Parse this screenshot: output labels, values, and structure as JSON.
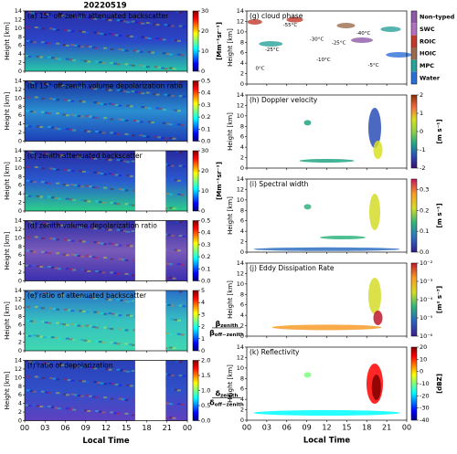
{
  "figure_title": "20220519",
  "chart_data": [
    {
      "type": "heatmap",
      "title": "(a) 15° off-zenith attenuated backscatter",
      "title_color": "#ffffff",
      "ylabel": "Height [km]",
      "xlim": [
        0,
        24
      ],
      "xticks": [
        {
          "value": 0,
          "label": "00"
        },
        {
          "value": 3,
          "label": "03"
        },
        {
          "value": 6,
          "label": "06"
        },
        {
          "value": 9,
          "label": "09"
        },
        12,
        15,
        18,
        21,
        {
          "value": 24,
          "label": "00"
        }
      ],
      "ylim": [
        0,
        14
      ],
      "yticks": [
        0,
        2,
        4,
        6,
        8,
        10,
        12,
        14
      ],
      "clim": [
        0,
        30
      ],
      "cticks": [
        0,
        10,
        20,
        30
      ],
      "cbar_label": "[Mm⁻¹sr⁻¹]",
      "colormap": [
        "#00007f",
        "#0000ff",
        "#007fff",
        "#00ffff",
        "#7fff7f",
        "#ffff00",
        "#ff7f00",
        "#ff0000",
        "#7f0000"
      ],
      "fill": [
        "#27c7a8",
        "#2b46c8",
        "#2a2ea8"
      ]
    },
    {
      "type": "heatmap",
      "title": "(b) 15° off-zenith volume depolarization ratio",
      "title_color": "#ffffff",
      "ylabel": "Height [km]",
      "xlim": [
        0,
        24
      ],
      "xticks": [
        {
          "value": 0,
          "label": "00"
        },
        {
          "value": 3,
          "label": "03"
        },
        {
          "value": 6,
          "label": "06"
        },
        {
          "value": 9,
          "label": "09"
        },
        12,
        15,
        18,
        21,
        {
          "value": 24,
          "label": "00"
        }
      ],
      "ylim": [
        0,
        14
      ],
      "yticks": [
        0,
        2,
        4,
        6,
        8,
        10,
        12,
        14
      ],
      "clim": [
        0,
        0.5
      ],
      "cticks": [
        {
          "value": 0,
          "label": "0.0"
        },
        0.1,
        0.2,
        0.3,
        0.4,
        0.5
      ],
      "colormap": [
        "#00007f",
        "#0000ff",
        "#007fff",
        "#00ffff",
        "#7fff7f",
        "#ffff00",
        "#ff7f00",
        "#ff0000",
        "#7f0000"
      ],
      "fill": [
        "#1e3fb8",
        "#2a8fd0",
        "#1a2fa0"
      ]
    },
    {
      "type": "heatmap",
      "title": "(c) zenith attenuated backscatter",
      "title_color": "#ffffff",
      "ylabel": "Height [km]",
      "xlim": [
        0,
        24
      ],
      "xticks": [
        {
          "value": 0,
          "label": "00"
        },
        {
          "value": 3,
          "label": "03"
        },
        {
          "value": 6,
          "label": "06"
        },
        {
          "value": 9,
          "label": "09"
        },
        12,
        15,
        18,
        21,
        {
          "value": 24,
          "label": "00"
        }
      ],
      "ylim": [
        0,
        14
      ],
      "yticks": [
        0,
        2,
        4,
        6,
        8,
        10,
        12,
        14
      ],
      "clim": [
        0,
        30
      ],
      "cticks": [
        0,
        10,
        20,
        30
      ],
      "cbar_label": "[Mm⁻¹sr⁻¹]",
      "colormap": [
        "#00007f",
        "#0000ff",
        "#007fff",
        "#00ffff",
        "#7fff7f",
        "#ffff00",
        "#ff7f00",
        "#ff0000",
        "#7f0000"
      ],
      "fill": [
        "#2bd08a",
        "#2a5ad0",
        "#2a2aa0"
      ],
      "missing_x": [
        16.3,
        20.8
      ]
    },
    {
      "type": "heatmap",
      "title": "(d) zenith volume depolarization ratio",
      "title_color": "#ffffff",
      "ylabel": "Height [km]",
      "xlim": [
        0,
        24
      ],
      "xticks": [
        {
          "value": 0,
          "label": "00"
        },
        {
          "value": 3,
          "label": "03"
        },
        {
          "value": 6,
          "label": "06"
        },
        {
          "value": 9,
          "label": "09"
        },
        12,
        15,
        18,
        21,
        {
          "value": 24,
          "label": "00"
        }
      ],
      "ylim": [
        0,
        14
      ],
      "yticks": [
        0,
        2,
        4,
        6,
        8,
        10,
        12,
        14
      ],
      "clim": [
        0,
        0.5
      ],
      "cticks": [
        {
          "value": 0,
          "label": "0.0"
        },
        0.1,
        0.2,
        0.3,
        0.4,
        0.5
      ],
      "colormap": [
        "#00007f",
        "#0000ff",
        "#007fff",
        "#00ffff",
        "#7fff7f",
        "#ffff00",
        "#ff7f00",
        "#ff0000",
        "#7f0000"
      ],
      "fill": [
        "#3a2fb0",
        "#7a5ab8",
        "#3030a8"
      ],
      "missing_x": [
        16.3,
        20.8
      ]
    },
    {
      "type": "heatmap",
      "title": "(e) ratio of attenuated backscatter",
      "title_color": "#ffffff",
      "ylabel": "Height [km]",
      "xlim": [
        0,
        24
      ],
      "xticks": [
        {
          "value": 0,
          "label": "00"
        },
        {
          "value": 3,
          "label": "03"
        },
        {
          "value": 6,
          "label": "06"
        },
        {
          "value": 9,
          "label": "09"
        },
        12,
        15,
        18,
        21,
        {
          "value": 24,
          "label": "00"
        }
      ],
      "ylim": [
        0,
        14
      ],
      "yticks": [
        0,
        2,
        4,
        6,
        8,
        10,
        12,
        14
      ],
      "clim": [
        0,
        5
      ],
      "cticks": [
        0,
        1,
        2,
        3,
        4,
        5
      ],
      "cbar_num": "β",
      "cbar_num_sub": "zenith",
      "cbar_den": "β",
      "cbar_den_sub": "off−zenith",
      "colormap": [
        "#00007f",
        "#0000ff",
        "#007fff",
        "#00ffff",
        "#7fff7f",
        "#ffff00",
        "#ff7f00",
        "#ff0000",
        "#7f0000"
      ],
      "fill": [
        "#3fd8b0",
        "#36c0c0",
        "#2a70c8"
      ],
      "missing_x": [
        16.3,
        20.8
      ]
    },
    {
      "type": "heatmap",
      "title": "(f) ratio of depolarization",
      "title_color": "#ffffff",
      "ylabel": "Height [km]",
      "xlabel": "Local Time",
      "xlim": [
        0,
        24
      ],
      "xticks": [
        {
          "value": 0,
          "label": "00"
        },
        {
          "value": 3,
          "label": "03"
        },
        {
          "value": 6,
          "label": "06"
        },
        {
          "value": 9,
          "label": "09"
        },
        12,
        15,
        18,
        21,
        {
          "value": 24,
          "label": "00"
        }
      ],
      "ylim": [
        0,
        14
      ],
      "yticks": [
        0,
        2,
        4,
        6,
        8,
        10,
        12,
        14
      ],
      "clim": [
        0,
        2
      ],
      "cticks": [
        {
          "value": 0,
          "label": "0.0"
        },
        0.5,
        {
          "value": 1,
          "label": "1.0"
        },
        1.5,
        {
          "value": 2,
          "label": "2.0"
        }
      ],
      "cbar_num": "δ",
      "cbar_num_sub": "zenith",
      "cbar_den": "δ",
      "cbar_den_sub": "off−zenith",
      "colormap": [
        "#00007f",
        "#0000ff",
        "#007fff",
        "#00ffff",
        "#7fff7f",
        "#ffff00",
        "#ff7f00",
        "#ff0000",
        "#7f0000"
      ],
      "fill": [
        "#6040c0",
        "#3050c8",
        "#2a40b8"
      ],
      "missing_x": [
        16.3,
        20.8
      ]
    },
    {
      "type": "category-map",
      "title": "(g) cloud phase",
      "title_color": "#000000",
      "ylabel": "Height [km]",
      "xlim": [
        0,
        24
      ],
      "xticks": [
        {
          "value": 0,
          "label": "00"
        },
        {
          "value": 3,
          "label": "03"
        },
        {
          "value": 6,
          "label": "06"
        },
        {
          "value": 9,
          "label": "09"
        },
        12,
        15,
        18,
        21,
        {
          "value": 24,
          "label": "00"
        }
      ],
      "ylim": [
        0,
        14
      ],
      "yticks": [
        0,
        2,
        4,
        6,
        8,
        10,
        12,
        14
      ],
      "classes": [
        {
          "name": "Non-typed",
          "color": "#8e5aa8"
        },
        {
          "name": "SWC",
          "color": "#b070c0"
        },
        {
          "name": "ROIC",
          "color": "#c0392b"
        },
        {
          "name": "HOIC",
          "color": "#9c6b4e"
        },
        {
          "name": "MPC",
          "color": "#2aa198"
        },
        {
          "name": "Water",
          "color": "#2a6fd6"
        }
      ],
      "annotations": [
        {
          "text": "-55°C",
          "x": 6.5,
          "y": 11.3,
          "color": "#d0302a"
        },
        {
          "text": "-40°C",
          "x": 17.5,
          "y": 9.7,
          "color": "#3a5ad0"
        },
        {
          "text": "-30°C",
          "x": 10.5,
          "y": 8.6,
          "color": "#3a80d0"
        },
        {
          "text": "-25°C",
          "x": 13.8,
          "y": 7.9,
          "color": "#40a0c0"
        },
        {
          "text": "-25°C",
          "x": 3.8,
          "y": 6.6,
          "color": "#40b0a0"
        },
        {
          "text": "-10°C",
          "x": 11.5,
          "y": 4.6,
          "color": "#80c060"
        },
        {
          "text": "-5°C",
          "x": 19,
          "y": 3.6,
          "color": "#b0c040"
        },
        {
          "text": "0°C",
          "x": 2,
          "y": 3,
          "color": "#d0c030"
        }
      ]
    },
    {
      "type": "heatmap",
      "title": "(h) Doppler velocity",
      "title_color": "#000000",
      "ylabel": "Height [km]",
      "xlim": [
        0,
        24
      ],
      "xticks": [
        {
          "value": 0,
          "label": "00"
        },
        {
          "value": 3,
          "label": "03"
        },
        {
          "value": 6,
          "label": "06"
        },
        {
          "value": 9,
          "label": "09"
        },
        12,
        15,
        18,
        21,
        {
          "value": 24,
          "label": "00"
        }
      ],
      "ylim": [
        0,
        14
      ],
      "yticks": [
        0,
        2,
        4,
        6,
        8,
        10,
        12,
        14
      ],
      "clim": [
        -2,
        2
      ],
      "cticks": [
        -2,
        -1,
        0,
        1,
        2
      ],
      "cbar_label": "[m s⁻¹]",
      "colormap": [
        "#3b0f70",
        "#2c4fb6",
        "#21a685",
        "#8fd04a",
        "#d9e021",
        "#f46d43",
        "#8c2d04"
      ]
    },
    {
      "type": "heatmap",
      "title": "(i) Spectral width",
      "title_color": "#000000",
      "ylabel": "Height [km]",
      "xlim": [
        0,
        24
      ],
      "xticks": [
        {
          "value": 0,
          "label": "00"
        },
        {
          "value": 3,
          "label": "03"
        },
        {
          "value": 6,
          "label": "06"
        },
        {
          "value": 9,
          "label": "09"
        },
        12,
        15,
        18,
        21,
        {
          "value": 24,
          "label": "00"
        }
      ],
      "ylim": [
        0,
        14
      ],
      "yticks": [
        0,
        2,
        4,
        6,
        8,
        10,
        12,
        14
      ],
      "clim": [
        0,
        0.35
      ],
      "cticks": [
        {
          "value": 0,
          "label": "0.0"
        },
        0.1,
        0.2,
        0.3
      ],
      "cbar_label": "[m s⁻¹]",
      "colormap": [
        "#2d1e8a",
        "#2f6fc0",
        "#2fb47c",
        "#d5dc28",
        "#f89b29",
        "#c2185b"
      ]
    },
    {
      "type": "heatmap",
      "title": "(j) Eddy Dissipation Rate",
      "title_color": "#000000",
      "ylabel": "Height [km]",
      "log_color": true,
      "xlim": [
        0,
        24
      ],
      "xticks": [
        {
          "value": 0,
          "label": "00"
        },
        {
          "value": 3,
          "label": "03"
        },
        {
          "value": 6,
          "label": "06"
        },
        {
          "value": 9,
          "label": "09"
        },
        12,
        15,
        18,
        21,
        {
          "value": 24,
          "label": "00"
        }
      ],
      "ylim": [
        0,
        14
      ],
      "yticks": [
        0,
        2,
        4,
        6,
        8,
        10,
        12,
        14
      ],
      "clim": [
        1e-06,
        0.01
      ],
      "cticks": [
        {
          "value": 1e-06,
          "label": "10⁻⁶"
        },
        {
          "value": 1e-05,
          "label": "10⁻⁵"
        },
        {
          "value": 0.0001,
          "label": "10⁻⁴"
        },
        {
          "value": 0.001,
          "label": "10⁻³"
        },
        {
          "value": 0.01,
          "label": "10⁻²"
        }
      ],
      "cbar_label": "[m² s⁻³]",
      "colormap": [
        "#3b1f8a",
        "#2f60c0",
        "#2fb47c",
        "#d5dc28",
        "#f89b29",
        "#c0182b"
      ]
    },
    {
      "type": "heatmap",
      "title": "(k) Reflectivity",
      "title_color": "#000000",
      "ylabel": "Height [km]",
      "xlabel": "Local Time",
      "xlim": [
        0,
        24
      ],
      "xticks": [
        {
          "value": 0,
          "label": "00"
        },
        {
          "value": 3,
          "label": "03"
        },
        {
          "value": 6,
          "label": "06"
        },
        {
          "value": 9,
          "label": "09"
        },
        12,
        15,
        18,
        21,
        {
          "value": 24,
          "label": "00"
        }
      ],
      "ylim": [
        0,
        14
      ],
      "yticks": [
        0,
        2,
        4,
        6,
        8,
        10,
        12,
        14
      ],
      "clim": [
        -40,
        20
      ],
      "cticks": [
        -40,
        -30,
        -20,
        -10,
        0,
        10,
        20
      ],
      "cbar_label": "[dBZ]",
      "colormap": [
        "#00007f",
        "#0000ff",
        "#007fff",
        "#00ffff",
        "#7fff7f",
        "#ffff00",
        "#ff7f00",
        "#ff0000",
        "#7f0000"
      ]
    }
  ]
}
